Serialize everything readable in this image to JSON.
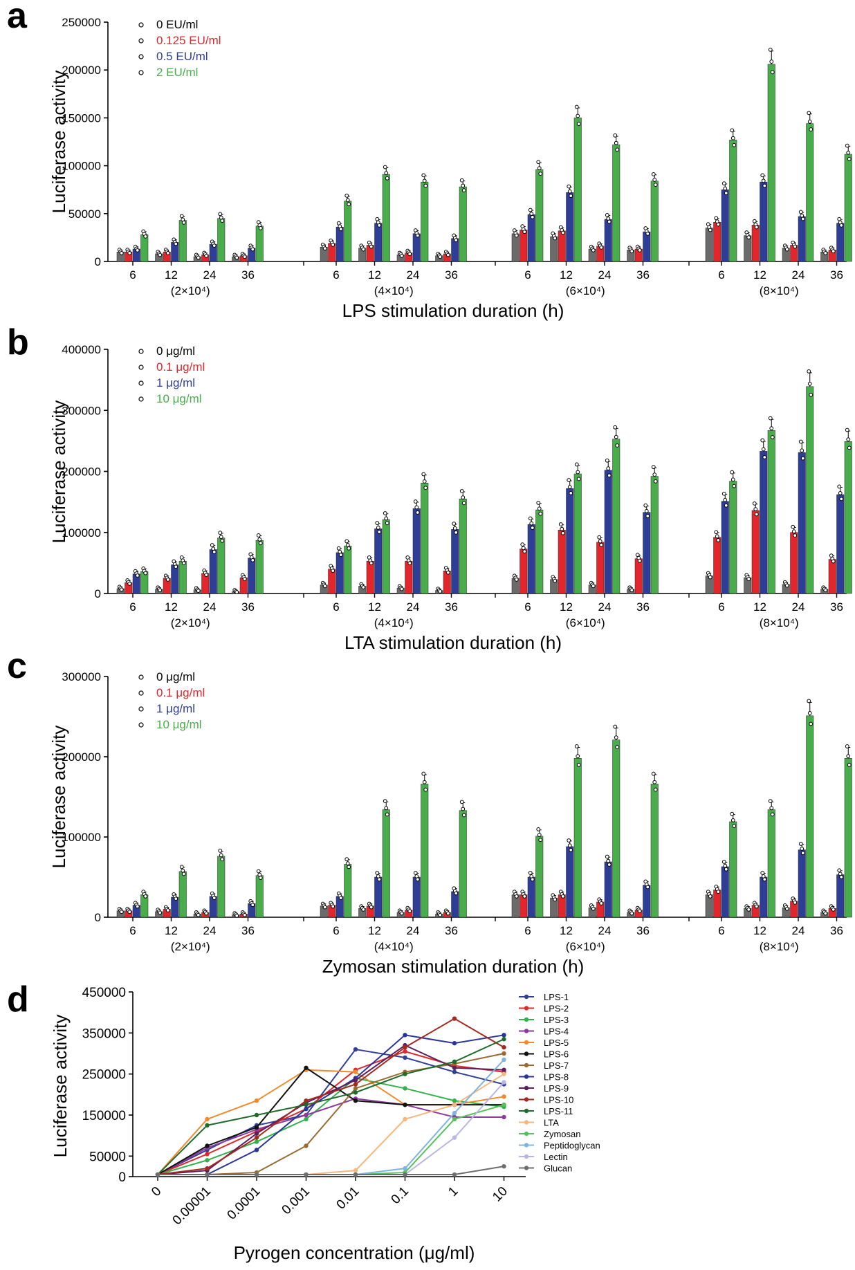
{
  "figure": {
    "panels": [
      "a",
      "b",
      "c",
      "d"
    ]
  },
  "chart_data": [
    {
      "panel": "a",
      "type": "bar",
      "ylabel": "Luciferase activity",
      "xlabel": "LPS stimulation duration (h)",
      "ylim": [
        0,
        250000
      ],
      "yticks": [
        "0",
        "50000",
        "100000",
        "150000",
        "200000",
        "250000"
      ],
      "timepoints": [
        "6",
        "12",
        "24",
        "36"
      ],
      "groups": [
        "(2×10⁴)",
        "(4×10⁴)",
        "(6×10⁴)",
        "(8×10⁴)"
      ],
      "legend_position": "top-left",
      "series": [
        {
          "name": "0 EU/ml",
          "color": "#6b6b6b",
          "legend_color": "#000000",
          "values": [
            10000,
            8000,
            5000,
            5000,
            15000,
            14000,
            7000,
            6000,
            29000,
            26000,
            13000,
            12000,
            35000,
            27000,
            14000,
            10000
          ]
        },
        {
          "name": "0.125 EU/ml",
          "color": "#e3262b",
          "legend_color": "#e3262b",
          "values": [
            10000,
            10000,
            7000,
            6000,
            19000,
            17000,
            9000,
            8000,
            33000,
            32000,
            16000,
            13000,
            41000,
            38000,
            17000,
            12000
          ]
        },
        {
          "name": "0.5 EU/ml",
          "color": "#2e3e96",
          "legend_color": "#2e3e96",
          "values": [
            13000,
            20000,
            18000,
            14000,
            36000,
            40000,
            29000,
            24000,
            49000,
            72000,
            44000,
            31000,
            75000,
            83000,
            47000,
            40000
          ]
        },
        {
          "name": "2 EU/ml",
          "color": "#49ad4b",
          "legend_color": "#49ad4b",
          "values": [
            28000,
            43000,
            45000,
            37000,
            63000,
            91000,
            83000,
            78000,
            96000,
            150000,
            122000,
            84000,
            127000,
            206000,
            144000,
            112000
          ]
        }
      ]
    },
    {
      "panel": "b",
      "type": "bar",
      "ylabel": "Luciferase activity",
      "xlabel": "LTA stimulation duration (h)",
      "ylim": [
        0,
        400000
      ],
      "yticks": [
        "0",
        "100000",
        "200000",
        "300000",
        "400000"
      ],
      "timepoints": [
        "6",
        "12",
        "24",
        "36"
      ],
      "groups": [
        "(2×10⁴)",
        "(4×10⁴)",
        "(6×10⁴)",
        "(8×10⁴)"
      ],
      "legend_position": "top-left",
      "series": [
        {
          "name": "0 μg/ml",
          "color": "#6b6b6b",
          "legend_color": "#000000",
          "values": [
            8000,
            7000,
            6000,
            3000,
            14000,
            12000,
            9000,
            5000,
            25000,
            23000,
            14000,
            7000,
            29000,
            26000,
            15000,
            7000
          ]
        },
        {
          "name": "0.1 μg/ml",
          "color": "#e3262b",
          "legend_color": "#e3262b",
          "values": [
            18000,
            25000,
            33000,
            26000,
            40000,
            53000,
            53000,
            37000,
            73000,
            104000,
            84000,
            57000,
            92000,
            136000,
            100000,
            56000
          ]
        },
        {
          "name": "1 μg/ml",
          "color": "#2e3e96",
          "legend_color": "#2e3e96",
          "values": [
            32000,
            47000,
            72000,
            58000,
            67000,
            106000,
            139000,
            105000,
            113000,
            172000,
            202000,
            133000,
            151000,
            233000,
            231000,
            162000
          ]
        },
        {
          "name": "10 μg/ml",
          "color": "#49ad4b",
          "legend_color": "#49ad4b",
          "values": [
            36000,
            53000,
            91000,
            87000,
            78000,
            121000,
            181000,
            155000,
            137000,
            196000,
            253000,
            192000,
            184000,
            267000,
            339000,
            249000
          ]
        }
      ]
    },
    {
      "panel": "c",
      "type": "bar",
      "ylabel": "Luciferase activity",
      "xlabel": "Zymosan stimulation duration (h)",
      "ylim": [
        0,
        300000
      ],
      "yticks": [
        "0",
        "100000",
        "200000",
        "300000"
      ],
      "timepoints": [
        "6",
        "12",
        "24",
        "36"
      ],
      "groups": [
        "(2×10⁴)",
        "(4×10⁴)",
        "(6×10⁴)",
        "(8×10⁴)"
      ],
      "legend_position": "top-left",
      "series": [
        {
          "name": "0 μg/ml",
          "color": "#6b6b6b",
          "legend_color": "#000000",
          "values": [
            8000,
            7000,
            4000,
            3000,
            14000,
            11000,
            6000,
            4000,
            28000,
            24000,
            12000,
            6000,
            28000,
            11000,
            12000,
            6000
          ]
        },
        {
          "name": "0.1 μg/ml",
          "color": "#e3262b",
          "legend_color": "#e3262b",
          "values": [
            8000,
            10000,
            6000,
            4000,
            15000,
            14000,
            9000,
            6000,
            28000,
            28000,
            19000,
            9000,
            34000,
            15000,
            20000,
            11000
          ]
        },
        {
          "name": "1 μg/ml",
          "color": "#2e3e96",
          "legend_color": "#2e3e96",
          "values": [
            15000,
            25000,
            26000,
            17000,
            26000,
            50000,
            50000,
            32000,
            50000,
            88000,
            69000,
            40000,
            63000,
            50000,
            84000,
            53000
          ]
        },
        {
          "name": "10 μg/ml",
          "color": "#49ad4b",
          "legend_color": "#49ad4b",
          "values": [
            28000,
            57000,
            76000,
            52000,
            66000,
            134000,
            166000,
            133000,
            101000,
            198000,
            221000,
            166000,
            119000,
            134000,
            251000,
            198000
          ]
        }
      ]
    },
    {
      "panel": "d",
      "type": "line",
      "ylabel": "Luciferase activity",
      "xlabel": "Pyrogen concentration (μg/ml)",
      "ylim": [
        0,
        450000
      ],
      "yticks": [
        "0",
        "50000",
        "150000",
        "250000",
        "350000",
        "450000"
      ],
      "x": [
        "0",
        "0.00001",
        "0.0001",
        "0.001",
        "0.01",
        "0.1",
        "1",
        "10"
      ],
      "legend_position": "top-right",
      "series": [
        {
          "name": "LPS-1",
          "color": "#2f3f9a",
          "values": [
            5000,
            65000,
            125000,
            150000,
            310000,
            290000,
            255000,
            225000
          ]
        },
        {
          "name": "LPS-2",
          "color": "#e3262b",
          "values": [
            5000,
            55000,
            110000,
            165000,
            260000,
            305000,
            270000,
            255000
          ]
        },
        {
          "name": "LPS-3",
          "color": "#2fb34a",
          "values": [
            5000,
            40000,
            85000,
            140000,
            240000,
            215000,
            185000,
            170000
          ]
        },
        {
          "name": "LPS-4",
          "color": "#8e3a9d",
          "values": [
            5000,
            70000,
            115000,
            150000,
            190000,
            175000,
            145000,
            145000
          ]
        },
        {
          "name": "LPS-5",
          "color": "#f08a2c",
          "values": [
            5000,
            140000,
            185000,
            260000,
            255000,
            175000,
            175000,
            195000
          ]
        },
        {
          "name": "LPS-6",
          "color": "#111111",
          "values": [
            5000,
            75000,
            120000,
            265000,
            185000,
            175000,
            175000,
            175000
          ]
        },
        {
          "name": "LPS-7",
          "color": "#9a6a2f",
          "values": [
            5000,
            5000,
            10000,
            75000,
            215000,
            255000,
            275000,
            300000
          ]
        },
        {
          "name": "LPS-8",
          "color": "#28349a",
          "values": [
            5000,
            5000,
            65000,
            165000,
            240000,
            345000,
            325000,
            345000
          ]
        },
        {
          "name": "LPS-9",
          "color": "#5c1f5c",
          "values": [
            5000,
            15000,
            105000,
            180000,
            235000,
            320000,
            265000,
            260000
          ]
        },
        {
          "name": "LPS-10",
          "color": "#a32a1e",
          "values": [
            5000,
            20000,
            95000,
            185000,
            225000,
            315000,
            385000,
            315000
          ]
        },
        {
          "name": "LPS-11",
          "color": "#1f6b2a",
          "values": [
            5000,
            125000,
            150000,
            175000,
            205000,
            250000,
            280000,
            335000
          ]
        },
        {
          "name": "LTA",
          "color": "#f5b77a",
          "values": [
            5000,
            5000,
            5000,
            5000,
            15000,
            140000,
            175000,
            250000
          ]
        },
        {
          "name": "Zymosan",
          "color": "#56c15a",
          "values": [
            5000,
            5000,
            5000,
            5000,
            5000,
            10000,
            140000,
            175000
          ]
        },
        {
          "name": "Peptidoglycan",
          "color": "#7fb3e0",
          "values": [
            5000,
            5000,
            5000,
            5000,
            5000,
            20000,
            155000,
            285000
          ]
        },
        {
          "name": "Lectin",
          "color": "#b7b6e3",
          "values": [
            5000,
            5000,
            5000,
            5000,
            5000,
            5000,
            95000,
            230000
          ]
        },
        {
          "name": "Glucan",
          "color": "#6e6e6e",
          "values": [
            5000,
            5000,
            5000,
            5000,
            5000,
            5000,
            5000,
            25000
          ]
        }
      ]
    }
  ]
}
